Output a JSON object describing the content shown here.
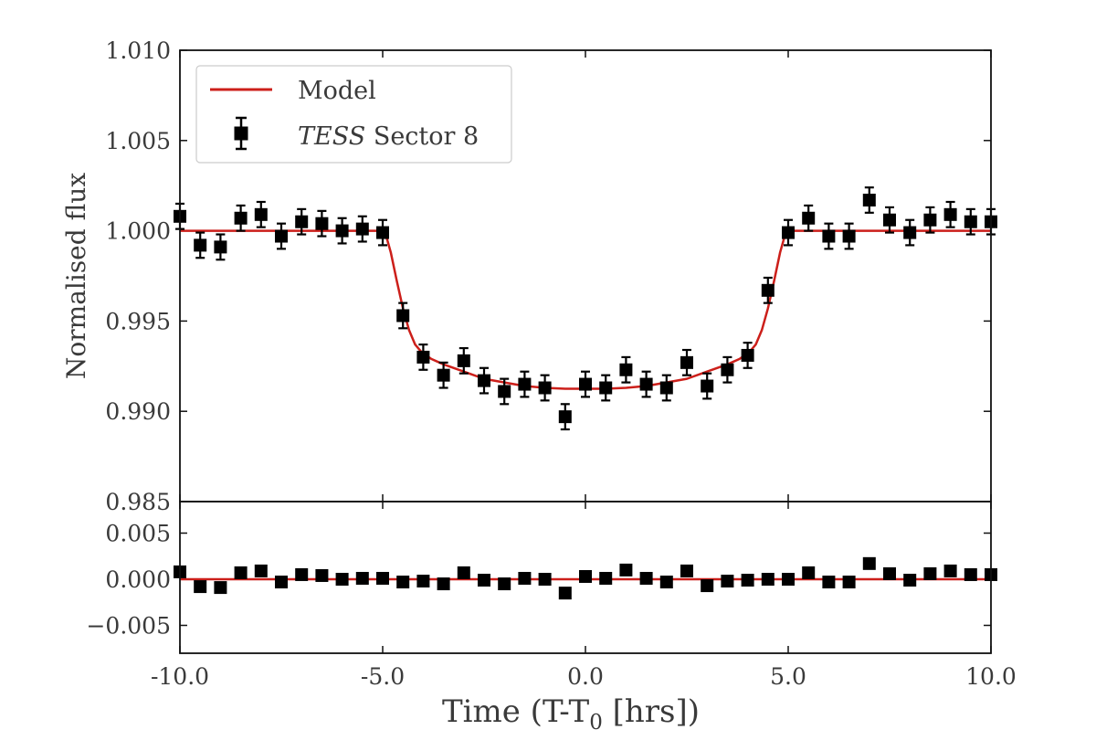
{
  "chart_data": [
    {
      "type": "scatter",
      "panel": "main",
      "ylabel": "Normalised flux",
      "xlim": [
        -10,
        10
      ],
      "ylim": [
        0.985,
        1.01
      ],
      "yticks": [
        "0.985",
        "0.990",
        "0.995",
        "1.000",
        "1.005",
        "1.010"
      ],
      "legend": {
        "placement": "top-left",
        "entries": [
          {
            "label": "Model",
            "marker": "line",
            "color": "#cc1f1a"
          },
          {
            "label_italic": "TESS",
            "label": " Sector 8",
            "marker": "square-errorbar",
            "color": "#000000"
          }
        ]
      },
      "series": [
        {
          "name": "TESS Sector 8",
          "color": "#000000",
          "error": 0.0007,
          "x": [
            -10,
            -9.5,
            -9,
            -8.5,
            -8,
            -7.5,
            -7,
            -6.5,
            -6,
            -5.5,
            -5,
            -4.5,
            -4,
            -3.5,
            -3,
            -2.5,
            -2,
            -1.5,
            -1,
            -0.5,
            0,
            0.5,
            1,
            1.5,
            2,
            2.5,
            3,
            3.5,
            4,
            4.5,
            5,
            5.5,
            6,
            6.5,
            7,
            7.5,
            8,
            8.5,
            9,
            9.5,
            10
          ],
          "y": [
            1.0008,
            0.9992,
            0.9991,
            1.0007,
            1.0009,
            0.9997,
            1.0005,
            1.0004,
            1.0,
            1.0001,
            0.9999,
            0.9953,
            0.993,
            0.992,
            0.9928,
            0.9917,
            0.9911,
            0.9915,
            0.9913,
            0.9897,
            0.9915,
            0.9913,
            0.9923,
            0.9915,
            0.9913,
            0.9927,
            0.9914,
            0.9923,
            0.9931,
            0.9967,
            0.9999,
            1.0007,
            0.9997,
            0.9997,
            1.0017,
            1.0006,
            0.9999,
            1.0006,
            1.0009,
            1.0005,
            1.0005
          ]
        },
        {
          "name": "Model",
          "color": "#cc1f1a",
          "x": [
            -10,
            -4.95,
            -4.8,
            -4.65,
            -4.5,
            -4.35,
            -4.2,
            -4.05,
            -3.8,
            -3.5,
            -3,
            -2.5,
            -2,
            -1.5,
            -1,
            -0.5,
            0,
            0.5,
            1,
            1.5,
            2,
            2.5,
            3,
            3.5,
            3.8,
            4.05,
            4.2,
            4.35,
            4.5,
            4.65,
            4.8,
            4.95,
            10
          ],
          "y": [
            1.0,
            1.0,
            0.9988,
            0.9972,
            0.9957,
            0.9945,
            0.9937,
            0.9933,
            0.9929,
            0.9926,
            0.9922,
            0.9918,
            0.9916,
            0.9914,
            0.9913,
            0.99125,
            0.99125,
            0.99125,
            0.9913,
            0.9914,
            0.9916,
            0.9918,
            0.9922,
            0.9926,
            0.9929,
            0.9933,
            0.9937,
            0.9945,
            0.9957,
            0.9972,
            0.9988,
            1.0,
            1.0
          ]
        }
      ]
    },
    {
      "type": "scatter",
      "panel": "residuals",
      "xlabel": "Time (T-T",
      "xlabel_sub": "0",
      "xlabel_tail": " [hrs])",
      "xlim": [
        -10,
        10
      ],
      "ylim": [
        -0.008,
        0.008
      ],
      "xticks": [
        "-10.0",
        "-5.0",
        "0.0",
        "5.0",
        "10.0"
      ],
      "yticks": [
        "−0.005",
        "0.000",
        "0.005"
      ],
      "series": [
        {
          "name": "Residuals",
          "color": "#000000",
          "x": [
            -10,
            -9.5,
            -9,
            -8.5,
            -8,
            -7.5,
            -7,
            -6.5,
            -6,
            -5.5,
            -5,
            -4.5,
            -4,
            -3.5,
            -3,
            -2.5,
            -2,
            -1.5,
            -1,
            -0.5,
            0,
            0.5,
            1,
            1.5,
            2,
            2.5,
            3,
            3.5,
            4,
            4.5,
            5,
            5.5,
            6,
            6.5,
            7,
            7.5,
            8,
            8.5,
            9,
            9.5,
            10
          ],
          "y": [
            0.0008,
            -0.0008,
            -0.0009,
            0.0007,
            0.0009,
            -0.0003,
            0.0005,
            0.0004,
            0.0,
            0.0001,
            0.0001,
            -0.0003,
            -0.0002,
            -0.0005,
            0.0007,
            -0.0001,
            -0.0005,
            0.0001,
            0.0,
            -0.0015,
            0.0003,
            0.0001,
            0.001,
            0.0001,
            -0.0003,
            0.0009,
            -0.0007,
            -0.0002,
            -0.0001,
            0.0,
            0.0,
            0.0007,
            -0.0003,
            -0.0003,
            0.0017,
            0.0006,
            -0.0001,
            0.0006,
            0.0009,
            0.0005,
            0.0005
          ]
        },
        {
          "name": "Zero line",
          "color": "#cc1f1a",
          "x": [
            -10,
            10
          ],
          "y": [
            0,
            0
          ]
        }
      ]
    }
  ]
}
